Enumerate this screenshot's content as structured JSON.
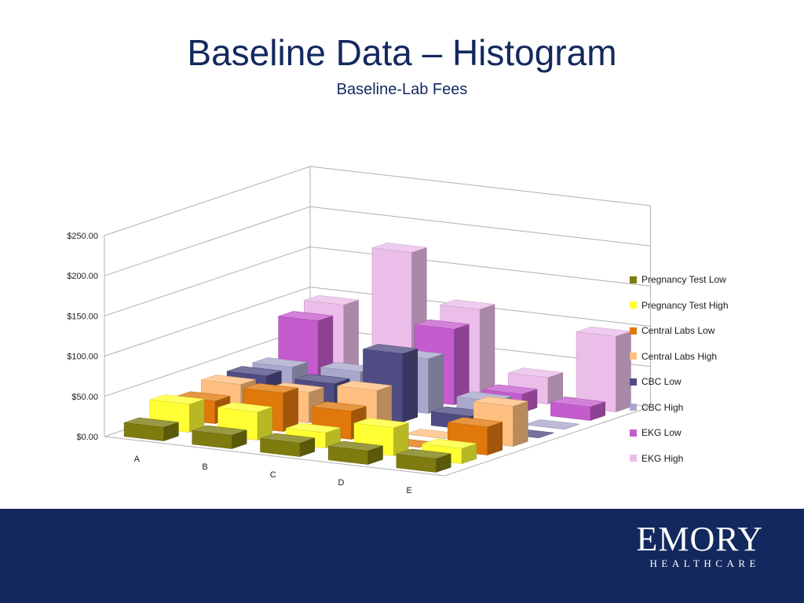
{
  "slide": {
    "title": "Baseline Data – Histogram"
  },
  "logo": {
    "name": "EMORY",
    "sub": "HEALTHCARE"
  },
  "chart_data": {
    "type": "bar",
    "subtype": "3d-column",
    "title": "Baseline-Lab Fees",
    "categories": [
      "A",
      "B",
      "C",
      "D",
      "E"
    ],
    "y_ticks": [
      "$0.00",
      "$50.00",
      "$100.00",
      "$150.00",
      "$200.00",
      "$250.00"
    ],
    "ylim": [
      0,
      250
    ],
    "grid": true,
    "legend_position": "right",
    "series": [
      {
        "name": "Pregnancy Test Low",
        "color": "#7e7c0e",
        "values": [
          17,
          17,
          17,
          17,
          17
        ]
      },
      {
        "name": "Pregnancy Test High",
        "color": "#ffff33",
        "values": [
          35,
          35,
          19,
          35,
          19
        ]
      },
      {
        "name": "Central Labs Low",
        "color": "#e0780c",
        "values": [
          28,
          48,
          35,
          0,
          35
        ]
      },
      {
        "name": "Central Labs High",
        "color": "#ffbf80",
        "values": [
          38,
          38,
          50,
          0,
          50
        ]
      },
      {
        "name": "CBC Low",
        "color": "#4f4c84",
        "values": [
          38,
          38,
          85,
          17,
          0
        ]
      },
      {
        "name": "CBC High",
        "color": "#a9a8cc",
        "values": [
          38,
          42,
          68,
          25,
          0
        ]
      },
      {
        "name": "EKG Low",
        "color": "#c55ccd",
        "values": [
          85,
          0,
          94,
          23,
          17
        ]
      },
      {
        "name": "EKG High",
        "color": "#ebbde9",
        "values": [
          94,
          169,
          108,
          33,
          94
        ]
      }
    ]
  }
}
